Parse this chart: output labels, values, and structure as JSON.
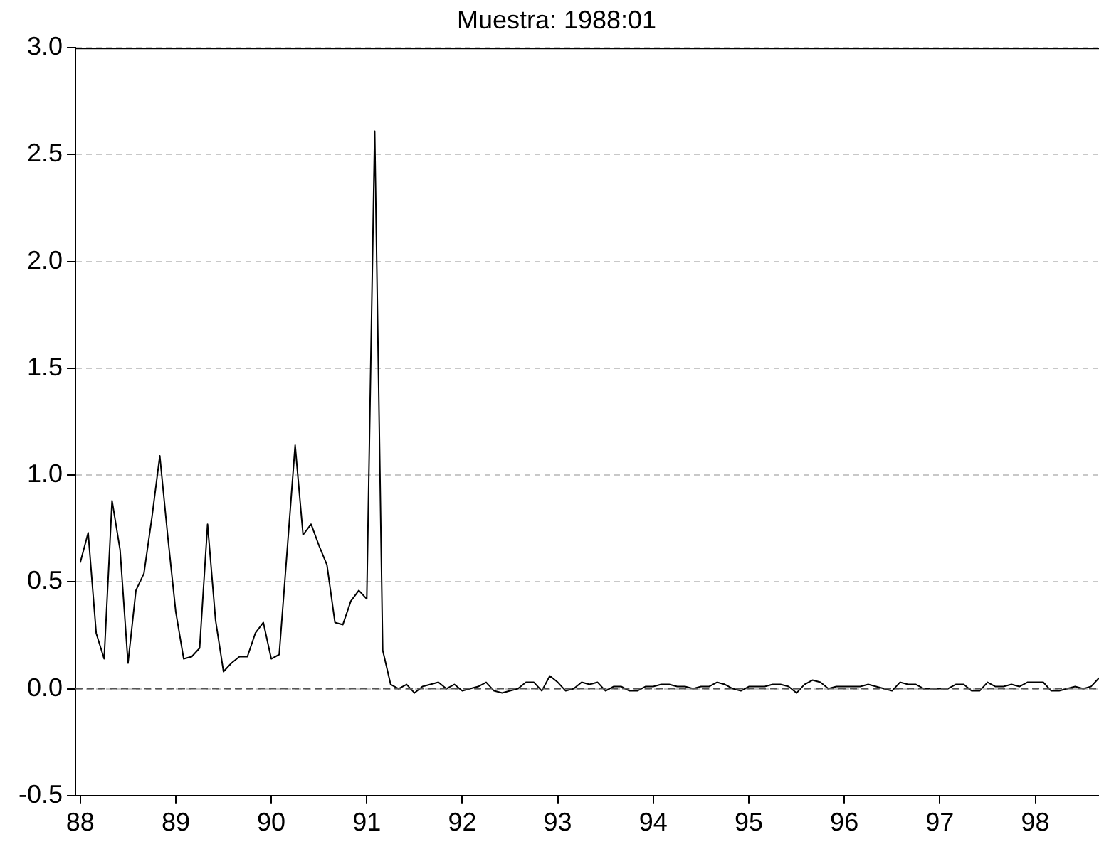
{
  "chart_data": {
    "type": "line",
    "title": "Muestra: 1988:01",
    "xlim": [
      87.95,
      98.667
    ],
    "xticks": [
      88,
      89,
      90,
      91,
      92,
      93,
      94,
      95,
      96,
      97,
      98
    ],
    "ylim": [
      -0.5,
      3.0
    ],
    "yticks": [
      {
        "value": -0.5,
        "label": "-0.5"
      },
      {
        "value": 0,
        "label": "0.0"
      },
      {
        "value": 0.5,
        "label": "0.5"
      },
      {
        "value": 1,
        "label": "1.0"
      },
      {
        "value": 1.5,
        "label": "1.5"
      },
      {
        "value": 2,
        "label": "2.0"
      },
      {
        "value": 2.5,
        "label": "2.5"
      },
      {
        "value": 3,
        "label": "3.0"
      }
    ],
    "grid": "y",
    "legend": false,
    "marker": "none",
    "line_style": "solid",
    "ref_lines": [
      {
        "axis": "y",
        "value": 0,
        "color": "#555555",
        "line_style": "dashed"
      }
    ],
    "series": [
      {
        "color": "#000000",
        "x": [
          88,
          88.083,
          88.167,
          88.25,
          88.333,
          88.417,
          88.5,
          88.583,
          88.667,
          88.75,
          88.833,
          88.917,
          89,
          89.083,
          89.167,
          89.25,
          89.333,
          89.417,
          89.5,
          89.583,
          89.667,
          89.75,
          89.833,
          89.917,
          90,
          90.083,
          90.167,
          90.25,
          90.333,
          90.417,
          90.5,
          90.583,
          90.667,
          90.75,
          90.833,
          90.917,
          91,
          91.083,
          91.167,
          91.25,
          91.333,
          91.417,
          91.5,
          91.583,
          91.667,
          91.75,
          91.833,
          91.917,
          92,
          92.083,
          92.167,
          92.25,
          92.333,
          92.417,
          92.5,
          92.583,
          92.667,
          92.75,
          92.833,
          92.917,
          93,
          93.083,
          93.167,
          93.25,
          93.333,
          93.417,
          93.5,
          93.583,
          93.667,
          93.75,
          93.833,
          93.917,
          94,
          94.083,
          94.167,
          94.25,
          94.333,
          94.417,
          94.5,
          94.583,
          94.667,
          94.75,
          94.833,
          94.917,
          95,
          95.083,
          95.167,
          95.25,
          95.333,
          95.417,
          95.5,
          95.583,
          95.667,
          95.75,
          95.833,
          95.917,
          96,
          96.083,
          96.167,
          96.25,
          96.333,
          96.417,
          96.5,
          96.583,
          96.667,
          96.75,
          96.833,
          96.917,
          97,
          97.083,
          97.167,
          97.25,
          97.333,
          97.417,
          97.5,
          97.583,
          97.667,
          97.75,
          97.833,
          97.917,
          98,
          98.083,
          98.167,
          98.25,
          98.333,
          98.417,
          98.5,
          98.583,
          98.667
        ],
        "values": [
          0.59,
          0.73,
          0.26,
          0.14,
          0.88,
          0.65,
          0.12,
          0.46,
          0.54,
          0.8,
          1.09,
          0.71,
          0.36,
          0.14,
          0.15,
          0.19,
          0.77,
          0.32,
          0.08,
          0.12,
          0.15,
          0.15,
          0.26,
          0.31,
          0.14,
          0.16,
          0.65,
          1.14,
          0.72,
          0.77,
          0.67,
          0.58,
          0.31,
          0.3,
          0.41,
          0.46,
          0.42,
          2.61,
          0.18,
          0.02,
          0.0,
          0.02,
          -0.02,
          0.01,
          0.02,
          0.03,
          0.0,
          0.02,
          -0.01,
          0.0,
          0.01,
          0.03,
          -0.01,
          -0.02,
          -0.01,
          0.0,
          0.03,
          0.03,
          -0.01,
          0.06,
          0.03,
          -0.01,
          0.0,
          0.03,
          0.02,
          0.03,
          -0.01,
          0.01,
          0.01,
          -0.01,
          -0.01,
          0.01,
          0.01,
          0.02,
          0.02,
          0.01,
          0.01,
          0.0,
          0.01,
          0.01,
          0.03,
          0.02,
          0.0,
          -0.01,
          0.01,
          0.01,
          0.01,
          0.02,
          0.02,
          0.01,
          -0.02,
          0.02,
          0.04,
          0.03,
          0.0,
          0.01,
          0.01,
          0.01,
          0.01,
          0.02,
          0.01,
          0.0,
          -0.01,
          0.03,
          0.02,
          0.02,
          0.0,
          0.0,
          0.0,
          0.0,
          0.02,
          0.02,
          -0.01,
          -0.01,
          0.03,
          0.01,
          0.01,
          0.02,
          0.01,
          0.03,
          0.03,
          0.03,
          -0.01,
          -0.01,
          0.0,
          0.01,
          0.0,
          0.01,
          0.05
        ]
      }
    ]
  }
}
